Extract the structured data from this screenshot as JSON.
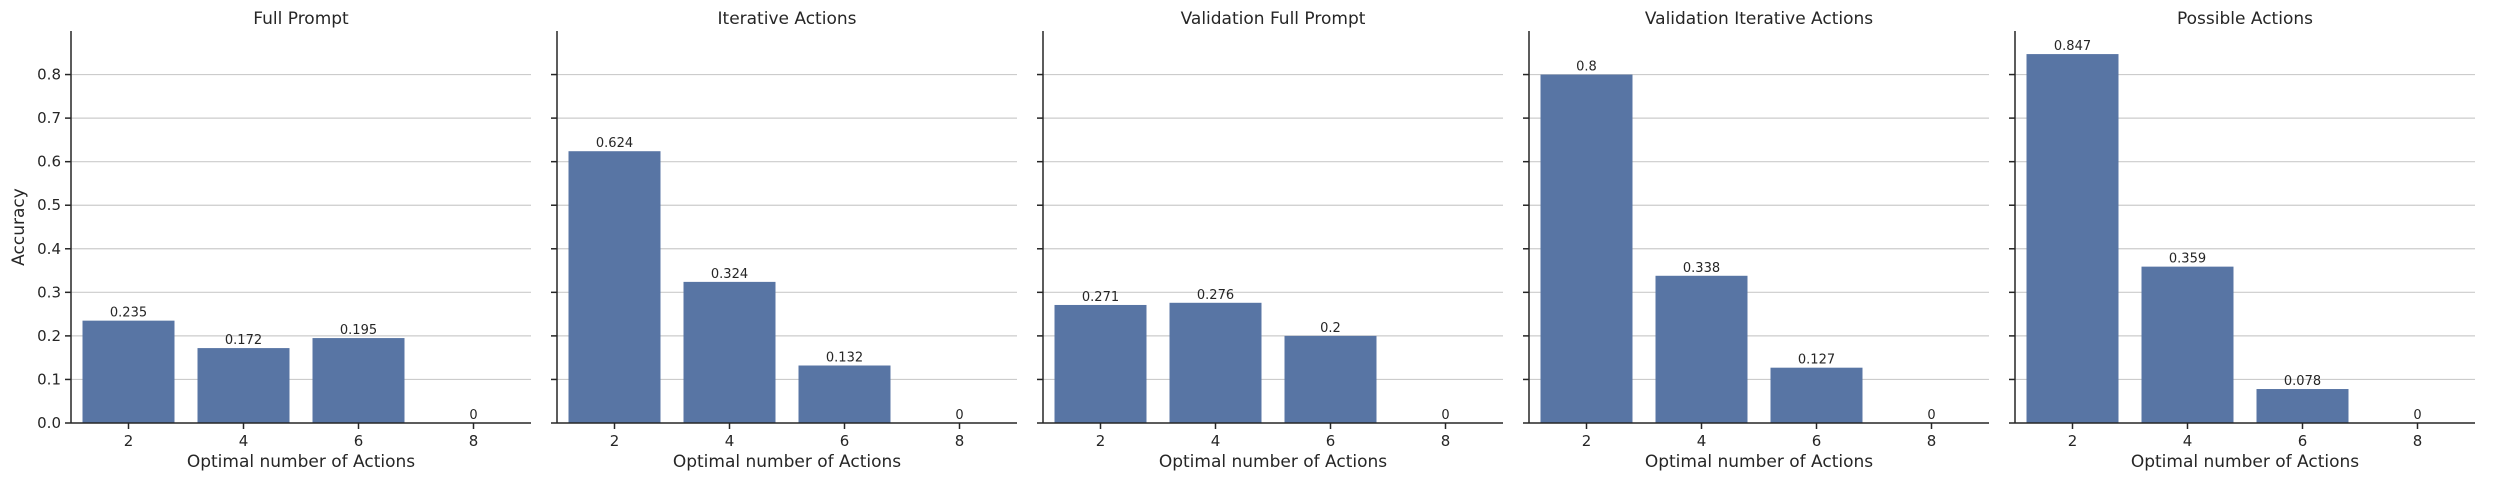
{
  "chart_data": [
    {
      "type": "bar",
      "title": "Full Prompt",
      "xlabel": "Optimal number of Actions",
      "ylabel": "Accuracy",
      "categories": [
        "2",
        "4",
        "6",
        "8"
      ],
      "values": [
        0.235,
        0.172,
        0.195,
        0
      ],
      "data_labels": [
        "0.235",
        "0.172",
        "0.195",
        "0"
      ],
      "ylim": [
        0,
        0.9
      ],
      "yticks": [
        "0.0",
        "0.1",
        "0.2",
        "0.3",
        "0.4",
        "0.5",
        "0.6",
        "0.7",
        "0.8"
      ],
      "grid": "horizontal"
    },
    {
      "type": "bar",
      "title": "Iterative Actions",
      "xlabel": "Optimal number of Actions",
      "ylabel": "",
      "categories": [
        "2",
        "4",
        "6",
        "8"
      ],
      "values": [
        0.624,
        0.324,
        0.132,
        0
      ],
      "data_labels": [
        "0.624",
        "0.324",
        "0.132",
        "0"
      ],
      "ylim": [
        0,
        0.9
      ],
      "grid": "horizontal"
    },
    {
      "type": "bar",
      "title": "Validation Full Prompt",
      "xlabel": "Optimal number of Actions",
      "ylabel": "",
      "categories": [
        "2",
        "4",
        "6",
        "8"
      ],
      "values": [
        0.271,
        0.276,
        0.2,
        0
      ],
      "data_labels": [
        "0.271",
        "0.276",
        "0.2",
        "0"
      ],
      "ylim": [
        0,
        0.9
      ],
      "grid": "horizontal"
    },
    {
      "type": "bar",
      "title": "Validation Iterative Actions",
      "xlabel": "Optimal number of Actions",
      "ylabel": "",
      "categories": [
        "2",
        "4",
        "6",
        "8"
      ],
      "values": [
        0.8,
        0.338,
        0.127,
        0
      ],
      "data_labels": [
        "0.8",
        "0.338",
        "0.127",
        "0"
      ],
      "ylim": [
        0,
        0.9
      ],
      "grid": "horizontal"
    },
    {
      "type": "bar",
      "title": "Possible Actions",
      "xlabel": "Optimal number of Actions",
      "ylabel": "",
      "categories": [
        "2",
        "4",
        "6",
        "8"
      ],
      "values": [
        0.847,
        0.359,
        0.078,
        0
      ],
      "data_labels": [
        "0.847",
        "0.359",
        "0.078",
        "0"
      ],
      "ylim": [
        0,
        0.9
      ],
      "grid": "horizontal"
    }
  ],
  "colors": {
    "bar": "#5875a4",
    "grid": "#cccccc",
    "axis": "#262626",
    "text": "#262626"
  }
}
